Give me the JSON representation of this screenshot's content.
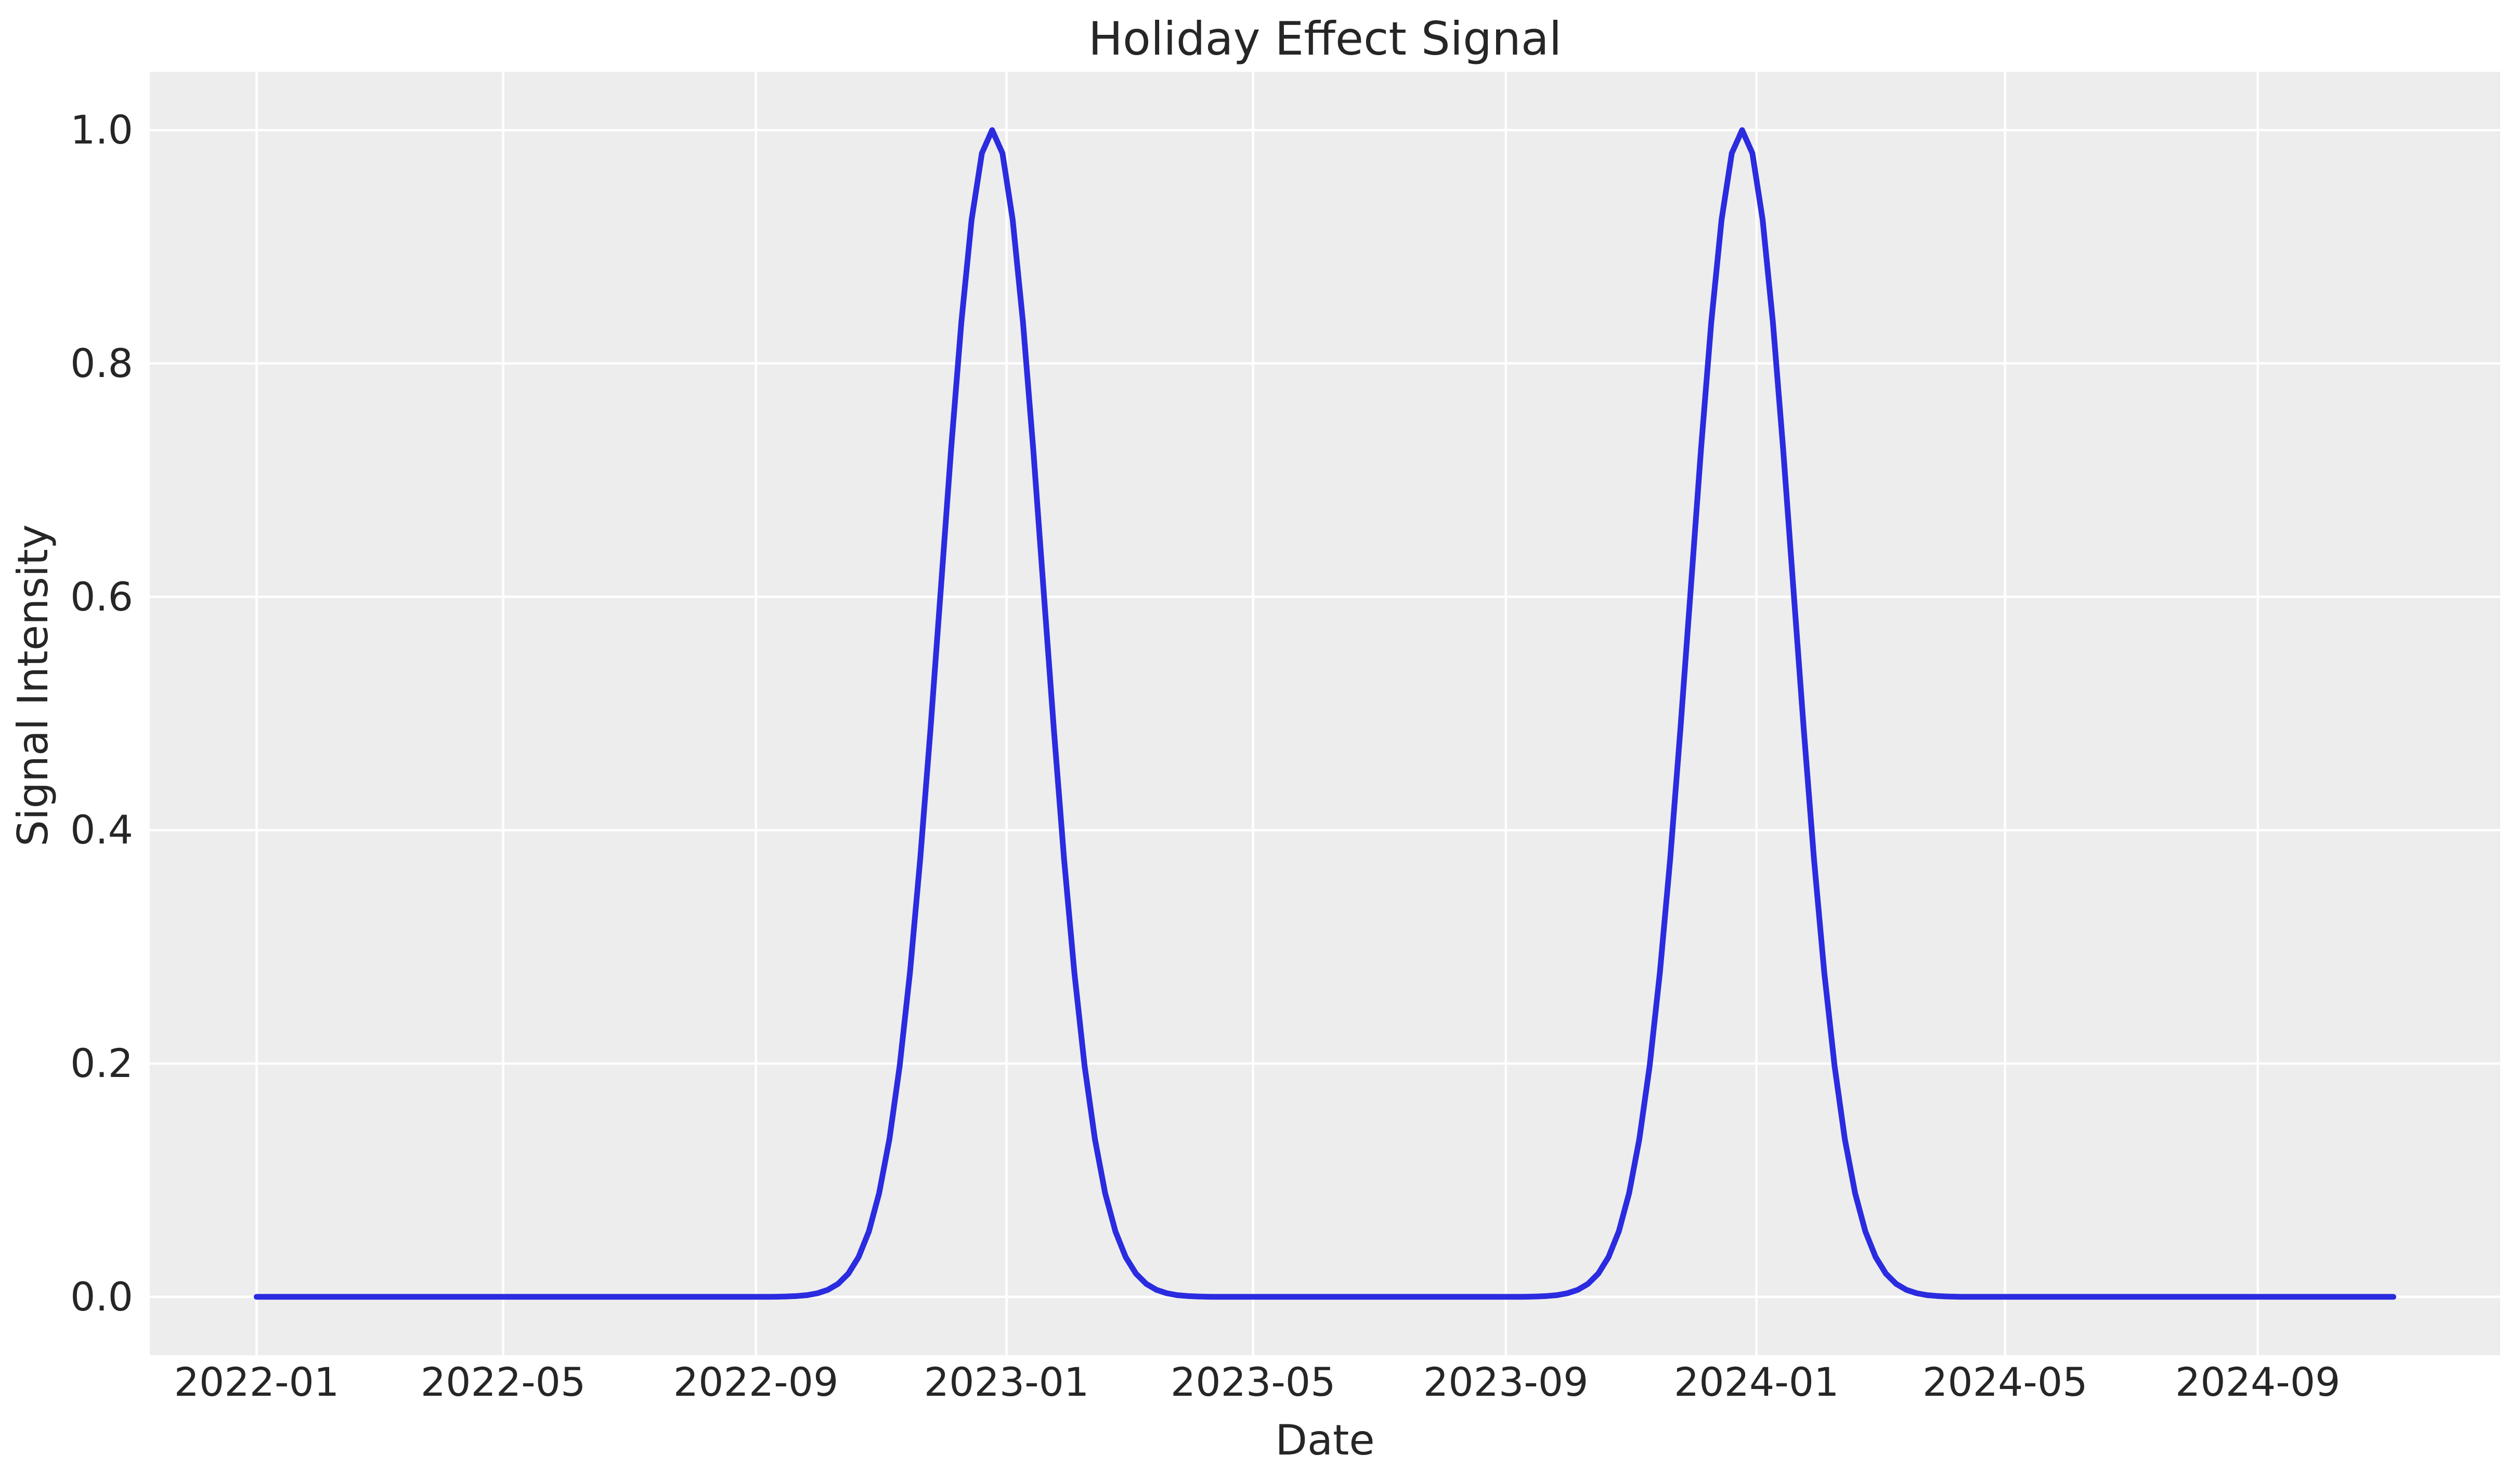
{
  "styles": {
    "figure_background": "#ffffff",
    "axes_background": "#ededed",
    "grid_color": "#ffffff",
    "text_color": "#262626",
    "line_color": "#2b2be0"
  },
  "chart_data": {
    "type": "line",
    "title": "Holiday Effect Signal",
    "xlabel": "Date",
    "ylabel": "Signal Intensity",
    "grid": true,
    "legend": "none",
    "x_unit": "days since first tick (2022-01)",
    "xlim_days": [
      -52,
      1092
    ],
    "ylim": [
      -0.05,
      1.05
    ],
    "x_ticks": [
      {
        "day": 0,
        "label": "2022-01"
      },
      {
        "day": 120,
        "label": "2022-05"
      },
      {
        "day": 243,
        "label": "2022-09"
      },
      {
        "day": 365,
        "label": "2023-01"
      },
      {
        "day": 485,
        "label": "2023-05"
      },
      {
        "day": 608,
        "label": "2023-09"
      },
      {
        "day": 730,
        "label": "2024-01"
      },
      {
        "day": 851,
        "label": "2024-05"
      },
      {
        "day": 974,
        "label": "2024-09"
      }
    ],
    "y_ticks": [
      {
        "value": 0.0,
        "label": "0.0"
      },
      {
        "value": 0.2,
        "label": "0.2"
      },
      {
        "value": 0.4,
        "label": "0.4"
      },
      {
        "value": 0.6,
        "label": "0.6"
      },
      {
        "value": 0.8,
        "label": "0.8"
      },
      {
        "value": 1.0,
        "label": "1.0"
      }
    ],
    "series": [
      {
        "name": "holiday-effect-signal",
        "color": "#2b2be0",
        "peak_value": 1.0,
        "x_days": [
          0,
          250,
          253,
          258,
          263,
          268,
          273,
          278,
          283,
          288,
          293,
          298,
          303,
          308,
          313,
          318,
          323,
          328,
          333,
          338,
          343,
          348,
          353,
          358,
          363,
          368,
          373,
          378,
          383,
          388,
          393,
          398,
          403,
          408,
          413,
          418,
          423,
          428,
          433,
          438,
          443,
          448,
          453,
          458,
          463,
          465,
          615,
          618,
          623,
          628,
          633,
          638,
          643,
          648,
          653,
          658,
          663,
          668,
          673,
          678,
          683,
          688,
          693,
          698,
          703,
          708,
          713,
          718,
          723,
          728,
          733,
          738,
          743,
          748,
          753,
          758,
          763,
          768,
          773,
          778,
          783,
          788,
          793,
          798,
          803,
          808,
          813,
          818,
          823,
          828,
          830,
          1040
        ],
        "y": [
          0,
          0,
          0.0001,
          0.0003,
          0.0007,
          0.0015,
          0.0031,
          0.006,
          0.0111,
          0.0199,
          0.0341,
          0.0561,
          0.0889,
          0.1353,
          0.1979,
          0.278,
          0.3753,
          0.4868,
          0.6065,
          0.7261,
          0.8353,
          0.9231,
          0.9802,
          1,
          0.9802,
          0.9231,
          0.8353,
          0.7261,
          0.6065,
          0.4868,
          0.3753,
          0.278,
          0.1979,
          0.1353,
          0.0889,
          0.0561,
          0.0341,
          0.0199,
          0.0111,
          0.006,
          0.0031,
          0.0015,
          0.0007,
          0.0003,
          0.0001,
          0,
          0,
          0.0001,
          0.0003,
          0.0007,
          0.0015,
          0.0031,
          0.006,
          0.0111,
          0.0199,
          0.0341,
          0.0561,
          0.0889,
          0.1353,
          0.1979,
          0.278,
          0.3753,
          0.4868,
          0.6065,
          0.7261,
          0.8353,
          0.9231,
          0.9802,
          1,
          0.9802,
          0.9231,
          0.8353,
          0.7261,
          0.6065,
          0.4868,
          0.3753,
          0.278,
          0.1979,
          0.1353,
          0.0889,
          0.0561,
          0.0341,
          0.0199,
          0.0111,
          0.006,
          0.0031,
          0.0015,
          0.0007,
          0.0003,
          0.0001,
          0,
          0
        ]
      }
    ]
  }
}
